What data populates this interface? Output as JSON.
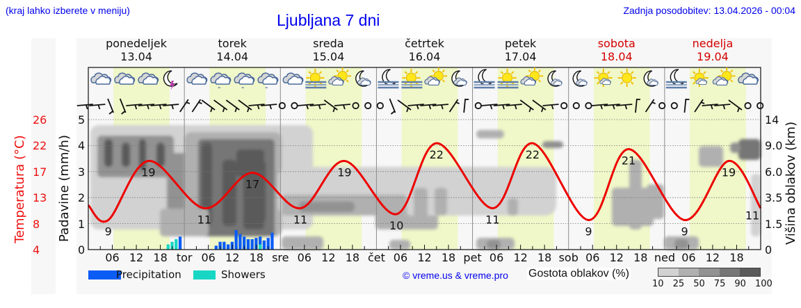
{
  "header": {
    "region_note": "(kraj lahko izberete v meniju)",
    "title": "Ljubljana 7 dni",
    "last_update": "Zadnja posodobitev: 13.04.2026 - 00:04"
  },
  "days": [
    {
      "name": "ponedeljek",
      "date": "13.04",
      "abbr": "",
      "weekend": false
    },
    {
      "name": "torek",
      "date": "14.04",
      "abbr": "tor",
      "weekend": false
    },
    {
      "name": "sreda",
      "date": "15.04",
      "abbr": "sre",
      "weekend": false
    },
    {
      "name": "četrtek",
      "date": "16.04",
      "abbr": "čet",
      "weekend": false
    },
    {
      "name": "petek",
      "date": "17.04",
      "abbr": "pet",
      "weekend": false
    },
    {
      "name": "sobota",
      "date": "18.04",
      "abbr": "sob",
      "weekend": true
    },
    {
      "name": "nedelja",
      "date": "19.04",
      "abbr": "ned",
      "weekend": true
    }
  ],
  "hour_ticks": [
    "06",
    "12",
    "18"
  ],
  "weather_icons": [
    [
      "cloudy-icon",
      "cloudy-icon",
      "cloudy-icon",
      "night-thunder-icon"
    ],
    [
      "cloudy-icon",
      "cloudy-rain-icon",
      "cloudy-rain-icon",
      "cloudy-rain-icon"
    ],
    [
      "cloudy-icon",
      "sun-fog-icon",
      "partly-cloudy-icon",
      "night-cloudy-icon"
    ],
    [
      "night-fog-icon",
      "sun-fog-icon",
      "partly-cloudy-icon",
      "night-cloudy-icon"
    ],
    [
      "night-fog-icon",
      "sun-fog-icon",
      "partly-cloudy-icon",
      "night-partly-cloudy-icon"
    ],
    [
      "night-partly-cloudy-icon",
      "sun-small-cloud-icon",
      "sun-icon",
      "night-partly-cloudy-icon"
    ],
    [
      "night-fog-icon",
      "sun-small-cloud-icon",
      "partly-cloudy-icon",
      "cloudy-icon"
    ]
  ],
  "axes": {
    "left_temp_title": "Temperatura (°C)",
    "left_temp_ticks": [
      "26",
      "22",
      "17",
      "13",
      "8",
      "4"
    ],
    "left_precip_title": "Padavine (mm/h)",
    "left_precip_ticks": [
      "5",
      "4",
      "3",
      "2",
      "1",
      "0"
    ],
    "right_title": "Višina oblakov (km)",
    "right_ticks": [
      "14",
      "9.0",
      "6.0",
      "3.5",
      "1.5",
      "0"
    ]
  },
  "legend": {
    "precipitation_label": "Precipitation",
    "showers_label": "Showers",
    "precipitation_color": "#0a5cf5",
    "showers_color": "#17d7c4",
    "copyright": "© vreme.us & vreme.pro",
    "cloud_density_title": "Gostota oblakov (%)",
    "cloud_density_scale": [
      "10",
      "25",
      "50",
      "75",
      "90",
      "100"
    ],
    "cloud_density_colors": [
      "#d2d2d2",
      "#b0b0b0",
      "#929292",
      "#767676",
      "#5a5a5a"
    ]
  },
  "colors": {
    "temperature_line": "#ee0000",
    "daylight": "#f0f7c8",
    "night": "#f7f7f7",
    "title_blue": "#0000ee",
    "weekend_red": "#d40000"
  },
  "chart_data": {
    "type": "line",
    "title": "Ljubljana 7 dni",
    "xlabel": "",
    "ylabel": "Padavine (mm/h)",
    "y2label": "Višina oblakov (km)",
    "y3label": "Temperatura (°C)",
    "ylim": [
      0,
      5
    ],
    "grid": true,
    "legend_position": "bottom",
    "x_categories": [
      "13.04",
      "14.04",
      "15.04",
      "16.04",
      "17.04",
      "18.04",
      "19.04"
    ],
    "series": [
      {
        "name": "Temperatura (°C)",
        "type": "line",
        "color": "#ee0000",
        "annotated_extremes": [
          {
            "day": "13.04",
            "hour": 5,
            "value": 9,
            "kind": "min"
          },
          {
            "day": "13.04",
            "hour": 15,
            "value": 19,
            "kind": "max"
          },
          {
            "day": "14.04",
            "hour": 5,
            "value": 11,
            "kind": "min"
          },
          {
            "day": "14.04",
            "hour": 17,
            "value": 17,
            "kind": "max"
          },
          {
            "day": "15.04",
            "hour": 5,
            "value": 11,
            "kind": "min"
          },
          {
            "day": "15.04",
            "hour": 16,
            "value": 19,
            "kind": "max"
          },
          {
            "day": "16.04",
            "hour": 5,
            "value": 10,
            "kind": "min"
          },
          {
            "day": "16.04",
            "hour": 15,
            "value": 22,
            "kind": "max"
          },
          {
            "day": "17.04",
            "hour": 5,
            "value": 11,
            "kind": "min"
          },
          {
            "day": "17.04",
            "hour": 15,
            "value": 22,
            "kind": "max"
          },
          {
            "day": "18.04",
            "hour": 5,
            "value": 9,
            "kind": "min"
          },
          {
            "day": "18.04",
            "hour": 15,
            "value": 21,
            "kind": "max"
          },
          {
            "day": "19.04",
            "hour": 5,
            "value": 9,
            "kind": "min"
          },
          {
            "day": "19.04",
            "hour": 16,
            "value": 19,
            "kind": "max"
          },
          {
            "day": "19.04",
            "hour": 24,
            "value": 11,
            "kind": "end"
          }
        ]
      },
      {
        "name": "Precipitation",
        "type": "bar",
        "color": "#0a5cf5",
        "unit": "mm/h",
        "points": [
          {
            "day": "13.04",
            "hour": 23,
            "value": 0.5
          },
          {
            "day": "14.04",
            "hour": 8,
            "value": 0.15
          },
          {
            "day": "14.04",
            "hour": 9,
            "value": 0.3
          },
          {
            "day": "14.04",
            "hour": 10,
            "value": 0.3
          },
          {
            "day": "14.04",
            "hour": 11,
            "value": 0.2
          },
          {
            "day": "14.04",
            "hour": 12,
            "value": 0.3
          },
          {
            "day": "14.04",
            "hour": 13,
            "value": 0.75
          },
          {
            "day": "14.04",
            "hour": 14,
            "value": 0.6
          },
          {
            "day": "14.04",
            "hour": 15,
            "value": 0.5
          },
          {
            "day": "14.04",
            "hour": 16,
            "value": 0.4
          },
          {
            "day": "14.04",
            "hour": 17,
            "value": 0.4
          },
          {
            "day": "14.04",
            "hour": 18,
            "value": 0.45
          },
          {
            "day": "14.04",
            "hour": 19,
            "value": 0.5
          },
          {
            "day": "14.04",
            "hour": 20,
            "value": 0.35
          },
          {
            "day": "14.04",
            "hour": 21,
            "value": 0.45
          },
          {
            "day": "14.04",
            "hour": 22,
            "value": 0.65
          }
        ]
      },
      {
        "name": "Showers",
        "type": "bar",
        "color": "#17d7c4",
        "unit": "mm/h",
        "points": [
          {
            "day": "13.04",
            "hour": 20,
            "value": 0.2
          },
          {
            "day": "13.04",
            "hour": 21,
            "value": 0.3
          },
          {
            "day": "13.04",
            "hour": 22,
            "value": 0.4
          },
          {
            "day": "14.04",
            "hour": 19,
            "value": 0.2
          }
        ]
      }
    ]
  }
}
